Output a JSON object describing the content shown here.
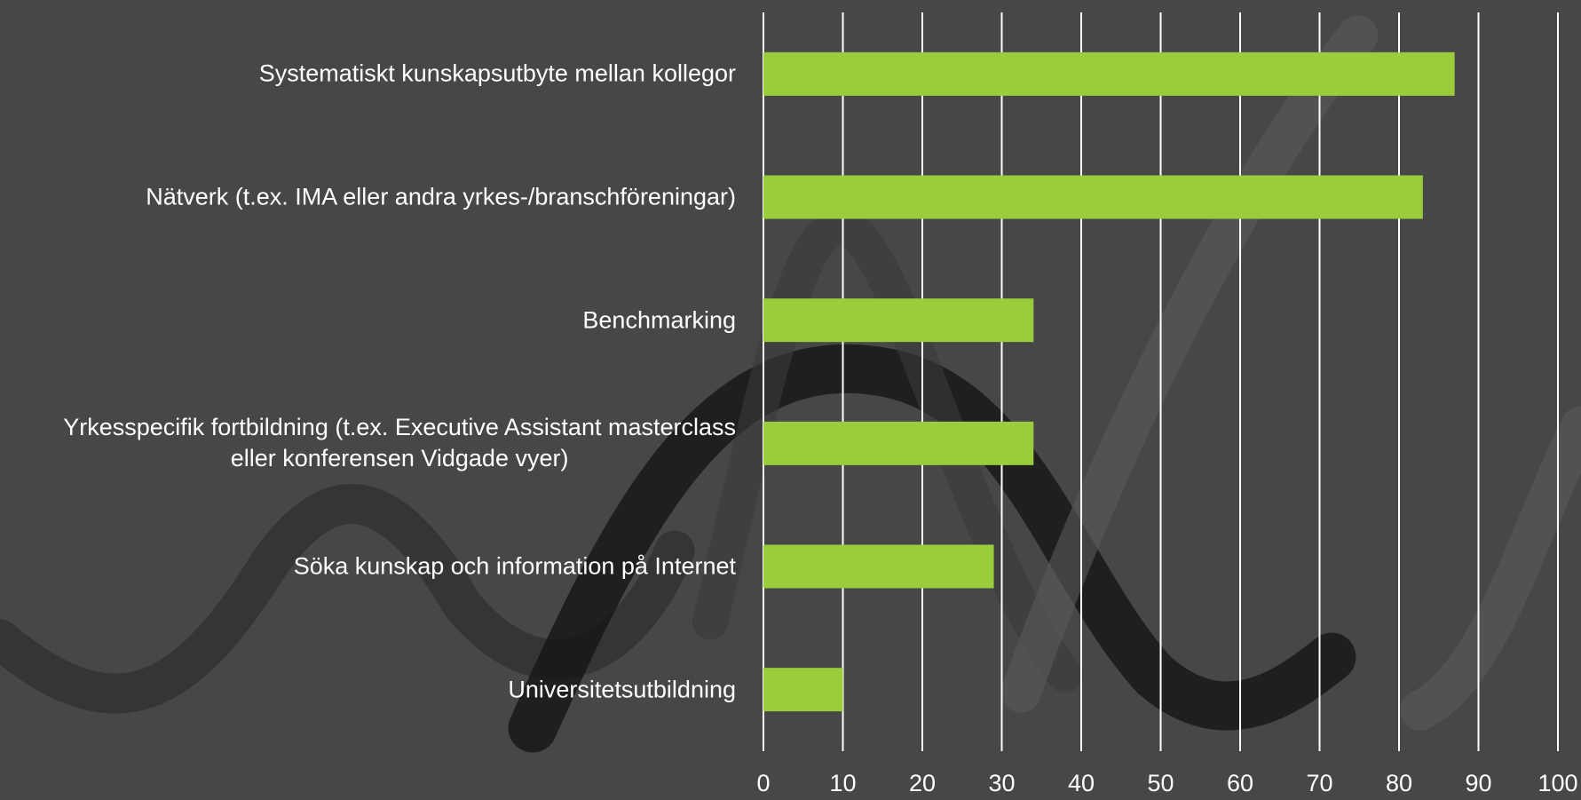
{
  "chart_data": {
    "type": "bar",
    "orientation": "horizontal",
    "categories": [
      "Systematiskt kunskapsutbyte mellan kollegor",
      "Nätverk (t.ex. IMA eller andra yrkes-/branschföreningar)",
      "Benchmarking",
      "Yrkesspecifik fortbildning (t.ex. Executive Assistant masterclass\neller konferensen Vidgade vyer)",
      "Söka kunskap och information på Internet",
      "Universitetsutbildning"
    ],
    "values": [
      87,
      83,
      34,
      34,
      29,
      10
    ],
    "color": "#9acd3c",
    "xlim": [
      0,
      100
    ],
    "xticks": [
      0,
      10,
      20,
      30,
      40,
      50,
      60,
      70,
      80,
      90,
      100
    ],
    "grid": true
  }
}
